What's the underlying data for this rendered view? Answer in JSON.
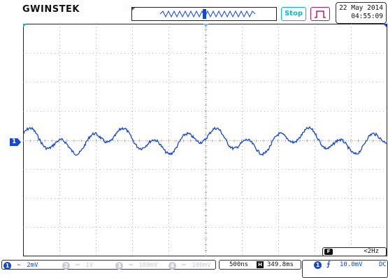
{
  "header": {
    "logo": "GWINSTEK",
    "run_status": "Stop",
    "trigger_mode_icon": "pulse-icon",
    "date": "22 May 2014",
    "time": "04:55:09"
  },
  "display": {
    "ch1_marker": "1",
    "accent_color": "#1546d6",
    "trace_color": "#1546d6",
    "grid_color": "#888888",
    "trigger_marker_color": "#c2185b"
  },
  "freq_counter": {
    "icon_label": "F",
    "value": "<2Hz"
  },
  "channels": [
    {
      "id": "1",
      "coupling_icon": "ac-coupling-icon",
      "coupling": "~",
      "scale": "2mV",
      "active": true
    },
    {
      "id": "2",
      "coupling_icon": "dc-coupling-icon",
      "coupling": "═",
      "scale": "1V",
      "active": false
    },
    {
      "id": "3",
      "coupling_icon": "dc-coupling-icon",
      "coupling": "═",
      "scale": "100mV",
      "active": false
    },
    {
      "id": "4",
      "coupling_icon": "dc-coupling-icon",
      "coupling": "═",
      "scale": "100mV",
      "active": false
    }
  ],
  "timebase": {
    "time_div": "500ns",
    "h_icon": "H",
    "h_position": "349.8ms"
  },
  "trigger": {
    "channel": "1",
    "edge_symbol": "⨍",
    "level": "10.0mV",
    "coupling": "DC"
  }
}
